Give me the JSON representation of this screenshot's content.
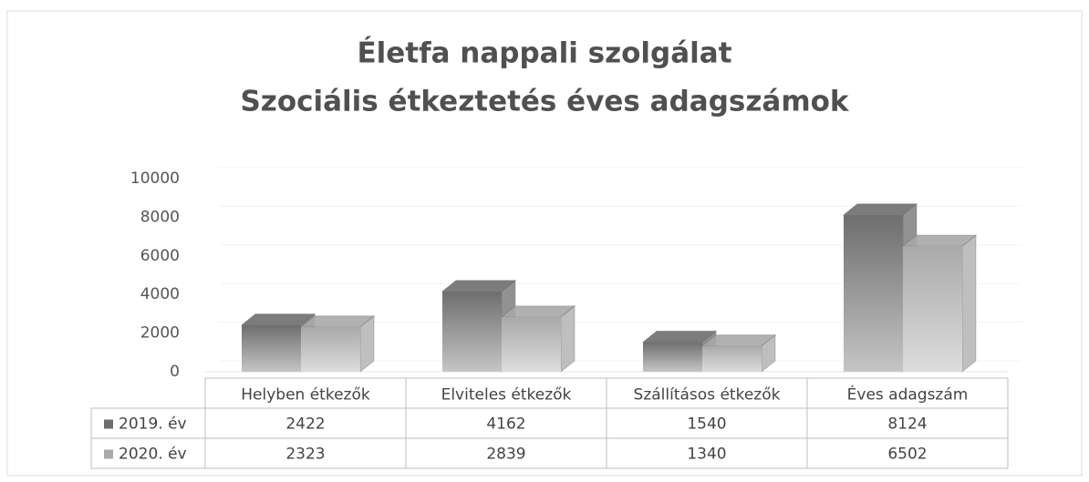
{
  "chart_data": {
    "type": "bar3d",
    "title": "Életfa nappali szolgálat",
    "subtitle": "Szociális étkeztetés éves adagszámok",
    "categories": [
      "Helyben étkezők",
      "Elviteles étkezők",
      "Szállításos étkezők",
      "Éves adagszám"
    ],
    "series": [
      {
        "name": "2019. év",
        "color": "#6e6e6e",
        "values": [
          2422,
          4162,
          1540,
          8124
        ]
      },
      {
        "name": "2020. év",
        "color": "#a9a9a9",
        "values": [
          2323,
          2839,
          1340,
          6502
        ]
      }
    ],
    "ylim": [
      0,
      10000
    ],
    "yticks": [
      0,
      2000,
      4000,
      6000,
      8000,
      10000
    ],
    "data_table": true
  }
}
